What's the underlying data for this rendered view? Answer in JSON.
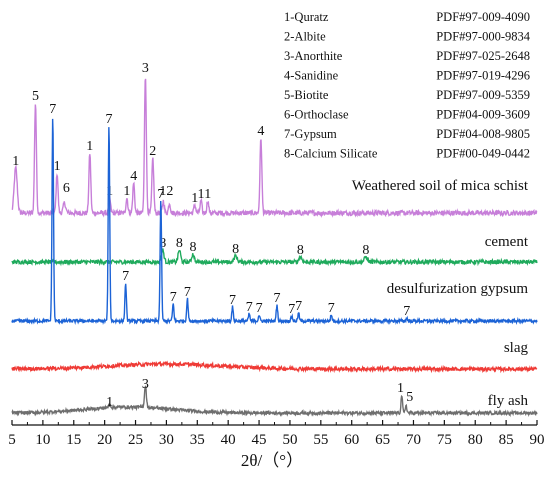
{
  "chart_data": {
    "type": "line",
    "title": "",
    "xlabel": "2θ/（°）",
    "ylabel": "",
    "xlim": [
      5,
      90
    ],
    "x_ticks": [
      5,
      10,
      15,
      20,
      25,
      30,
      35,
      40,
      45,
      50,
      55,
      60,
      65,
      70,
      75,
      80,
      85,
      90
    ],
    "grid": false,
    "legend_position": "top-right",
    "legend": [
      {
        "id": "1",
        "mineral": "Quratz",
        "pdf": "PDF#97-009-4090",
        "label": "1-Quratz"
      },
      {
        "id": "2",
        "mineral": "Albite",
        "pdf": "PDF#97-000-9834",
        "label": "2-Albite"
      },
      {
        "id": "3",
        "mineral": "Anorthite",
        "pdf": "PDF#97-025-2648",
        "label": "3-Anorthite"
      },
      {
        "id": "4",
        "mineral": "Sanidine",
        "pdf": "PDF#97-019-4296",
        "label": "4-Sanidine"
      },
      {
        "id": "5",
        "mineral": "Biotite",
        "pdf": "PDF#97-009-5359",
        "label": "5-Biotite"
      },
      {
        "id": "6",
        "mineral": "Orthoclase",
        "pdf": "PDF#04-009-3609",
        "label": "6-Orthoclase"
      },
      {
        "id": "7",
        "mineral": "Gypsum",
        "pdf": "PDF#04-008-9805",
        "label": "7-Gypsum"
      },
      {
        "id": "8",
        "mineral": "Calcium Silicate",
        "pdf": "PDF#00-049-0442",
        "label": "8-Calcium Silicate"
      }
    ],
    "series": [
      {
        "name": "Weathered soil of mica schist",
        "color": "#c77fd9",
        "baseline": 0,
        "noise": 2.5,
        "peaks": [
          {
            "x": 5.6,
            "h": 45,
            "w": 0.25
          },
          {
            "x": 8.8,
            "h": 110,
            "w": 0.15
          },
          {
            "x": 12.3,
            "h": 40,
            "w": 0.15
          },
          {
            "x": 13.5,
            "h": 10,
            "w": 0.2
          },
          {
            "x": 17.6,
            "h": 60,
            "w": 0.15
          },
          {
            "x": 20.8,
            "h": 15,
            "w": 0.15
          },
          {
            "x": 23.6,
            "h": 15,
            "w": 0.15
          },
          {
            "x": 24.7,
            "h": 30,
            "w": 0.15
          },
          {
            "x": 26.6,
            "h": 138,
            "w": 0.15
          },
          {
            "x": 27.8,
            "h": 55,
            "w": 0.15
          },
          {
            "x": 29.5,
            "h": 12,
            "w": 0.15
          },
          {
            "x": 30.5,
            "h": 10,
            "w": 0.15
          },
          {
            "x": 34.6,
            "h": 8,
            "w": 0.15
          },
          {
            "x": 35.6,
            "h": 12,
            "w": 0.15
          },
          {
            "x": 36.7,
            "h": 12,
            "w": 0.15
          },
          {
            "x": 45.3,
            "h": 75,
            "w": 0.15
          }
        ],
        "annotations": [
          {
            "x": 5.6,
            "h": 45,
            "text": "1"
          },
          {
            "x": 8.8,
            "h": 110,
            "text": "5"
          },
          {
            "x": 12.3,
            "h": 40,
            "text": "1"
          },
          {
            "x": 13.8,
            "h": 18,
            "text": "6"
          },
          {
            "x": 17.6,
            "h": 60,
            "text": "1"
          },
          {
            "x": 20.8,
            "h": 15,
            "text": "1"
          },
          {
            "x": 23.6,
            "h": 15,
            "text": "1"
          },
          {
            "x": 24.7,
            "h": 30,
            "text": "4"
          },
          {
            "x": 26.6,
            "h": 138,
            "text": "3"
          },
          {
            "x": 27.8,
            "h": 55,
            "text": "2"
          },
          {
            "x": 30.0,
            "h": 15,
            "text": "12"
          },
          {
            "x": 34.6,
            "h": 8,
            "text": "1"
          },
          {
            "x": 35.6,
            "h": 12,
            "text": "1"
          },
          {
            "x": 36.7,
            "h": 12,
            "text": "1"
          },
          {
            "x": 45.3,
            "h": 75,
            "text": "4"
          }
        ]
      },
      {
        "name": "cement",
        "color": "#1faa5c",
        "baseline": 0,
        "noise": 2,
        "peaks": [
          {
            "x": 29.4,
            "h": 12,
            "w": 0.2
          },
          {
            "x": 32.1,
            "h": 12,
            "w": 0.2
          },
          {
            "x": 34.3,
            "h": 8,
            "w": 0.2
          },
          {
            "x": 41.2,
            "h": 6,
            "w": 0.25
          },
          {
            "x": 51.7,
            "h": 5,
            "w": 0.25
          },
          {
            "x": 62.3,
            "h": 5,
            "w": 0.25
          }
        ],
        "annotations": [
          {
            "x": 29.4,
            "h": 12,
            "text": "8"
          },
          {
            "x": 32.1,
            "h": 12,
            "text": "8"
          },
          {
            "x": 34.3,
            "h": 8,
            "text": "8"
          },
          {
            "x": 41.2,
            "h": 6,
            "text": "8"
          },
          {
            "x": 51.7,
            "h": 5,
            "text": "8"
          },
          {
            "x": 62.3,
            "h": 5,
            "text": "8"
          }
        ]
      },
      {
        "name": "desulfurization gypsum",
        "color": "#1c63d6",
        "baseline": 0,
        "noise": 1.6,
        "peaks": [
          {
            "x": 11.6,
            "h": 205,
            "w": 0.12
          },
          {
            "x": 20.7,
            "h": 195,
            "w": 0.12
          },
          {
            "x": 23.4,
            "h": 38,
            "w": 0.12
          },
          {
            "x": 29.1,
            "h": 120,
            "w": 0.12
          },
          {
            "x": 31.1,
            "h": 17,
            "w": 0.12
          },
          {
            "x": 33.4,
            "h": 22,
            "w": 0.12
          },
          {
            "x": 40.7,
            "h": 14,
            "w": 0.12
          },
          {
            "x": 43.4,
            "h": 7,
            "w": 0.12
          },
          {
            "x": 45.0,
            "h": 6,
            "w": 0.12
          },
          {
            "x": 47.9,
            "h": 16,
            "w": 0.12
          },
          {
            "x": 50.3,
            "h": 5,
            "w": 0.12
          },
          {
            "x": 51.4,
            "h": 8,
            "w": 0.12
          },
          {
            "x": 56.7,
            "h": 6,
            "w": 0.12
          },
          {
            "x": 68.9,
            "h": 3,
            "w": 0.12
          }
        ],
        "annotations": [
          {
            "x": 11.6,
            "h": 205,
            "text": "7"
          },
          {
            "x": 20.7,
            "h": 195,
            "text": "7"
          },
          {
            "x": 23.4,
            "h": 38,
            "text": "7"
          },
          {
            "x": 29.1,
            "h": 120,
            "text": "7"
          },
          {
            "x": 31.1,
            "h": 17,
            "text": "7"
          },
          {
            "x": 33.4,
            "h": 22,
            "text": "7"
          },
          {
            "x": 40.7,
            "h": 14,
            "text": "7"
          },
          {
            "x": 43.4,
            "h": 7,
            "text": "7"
          },
          {
            "x": 45.0,
            "h": 6,
            "text": "7"
          },
          {
            "x": 47.9,
            "h": 16,
            "text": "7"
          },
          {
            "x": 50.3,
            "h": 5,
            "text": "7"
          },
          {
            "x": 51.4,
            "h": 8,
            "text": "7"
          },
          {
            "x": 56.7,
            "h": 6,
            "text": "7"
          },
          {
            "x": 68.9,
            "h": 3,
            "text": "7"
          }
        ]
      },
      {
        "name": "slag",
        "color": "#ef3b36",
        "baseline": 0,
        "noise": 1.8,
        "hump": {
          "x": 30,
          "h": 5,
          "w": 9
        },
        "peaks": [],
        "annotations": []
      },
      {
        "name": "fly ash",
        "color": "#6e6e6e",
        "baseline": 0,
        "noise": 1.6,
        "hump": {
          "x": 24,
          "h": 6,
          "w": 7
        },
        "peaks": [
          {
            "x": 20.8,
            "h": 4,
            "w": 0.15
          },
          {
            "x": 26.6,
            "h": 22,
            "w": 0.15
          },
          {
            "x": 68.1,
            "h": 18,
            "w": 0.12
          },
          {
            "x": 68.8,
            "h": 8,
            "w": 0.12
          }
        ],
        "annotations": [
          {
            "x": 20.8,
            "h": 4,
            "text": "1"
          },
          {
            "x": 26.6,
            "h": 22,
            "text": "3"
          },
          {
            "x": 67.9,
            "h": 18,
            "text": "1"
          },
          {
            "x": 69.4,
            "h": 9,
            "text": "5"
          }
        ]
      }
    ]
  }
}
